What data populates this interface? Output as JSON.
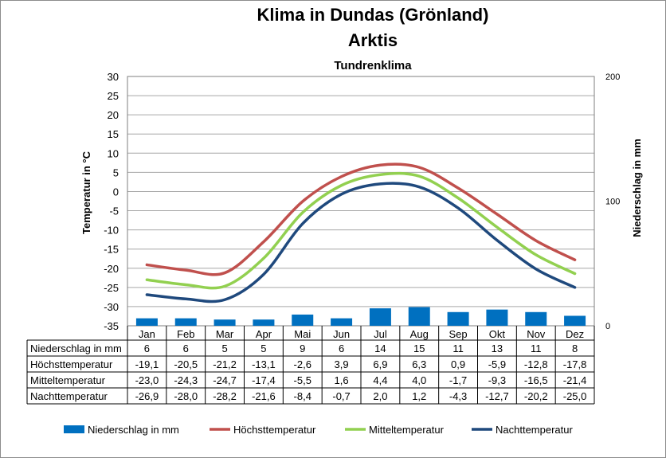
{
  "chart_data": {
    "type": "bar+line",
    "title": "Klima in Dundas (Grönland)",
    "subtitle": "Arktis",
    "subtitle2": "Tundrenklima",
    "ylabel_left": "Temperatur in °C",
    "ylabel_right": "Niederschlag in mm",
    "ylim_left": [
      -35,
      30
    ],
    "ylim_right": [
      0,
      200
    ],
    "yticks_left": [
      "30",
      "25",
      "20",
      "15",
      "10",
      "5",
      "0",
      "-5",
      "-10",
      "-15",
      "-20",
      "-25",
      "-30",
      "-35"
    ],
    "yticks_right": [
      "200",
      "100",
      "0"
    ],
    "grid": true,
    "legend_position": "bottom",
    "categories": [
      "Jan",
      "Feb",
      "Mar",
      "Apr",
      "Mai",
      "Jun",
      "Jul",
      "Aug",
      "Sep",
      "Okt",
      "Nov",
      "Dez"
    ],
    "series": [
      {
        "name": "Niederschlag in mm",
        "type": "bar",
        "axis": "right",
        "color": "#0070c0",
        "values": [
          6,
          6,
          5,
          5,
          9,
          6,
          14,
          15,
          11,
          13,
          11,
          8
        ],
        "labels": [
          "6",
          "6",
          "5",
          "5",
          "9",
          "6",
          "14",
          "15",
          "11",
          "13",
          "11",
          "8"
        ]
      },
      {
        "name": "Höchsttemperatur",
        "type": "line",
        "axis": "left",
        "color": "#c0504d",
        "values": [
          -19.1,
          -20.5,
          -21.2,
          -13.1,
          -2.6,
          3.9,
          6.9,
          6.3,
          0.9,
          -5.9,
          -12.8,
          -17.8
        ],
        "labels": [
          "-19,1",
          "-20,5",
          "-21,2",
          "-13,1",
          "-2,6",
          "3,9",
          "6,9",
          "6,3",
          "0,9",
          "-5,9",
          "-12,8",
          "-17,8"
        ]
      },
      {
        "name": "Mitteltemperatur",
        "type": "line",
        "axis": "left",
        "color": "#92d050",
        "values": [
          -23.0,
          -24.3,
          -24.7,
          -17.4,
          -5.5,
          1.6,
          4.4,
          4.0,
          -1.7,
          -9.3,
          -16.5,
          -21.4
        ],
        "labels": [
          "-23,0",
          "-24,3",
          "-24,7",
          "-17,4",
          "-5,5",
          "1,6",
          "4,4",
          "4,0",
          "-1,7",
          "-9,3",
          "-16,5",
          "-21,4"
        ]
      },
      {
        "name": "Nachttemperatur",
        "type": "line",
        "axis": "left",
        "color": "#1f497d",
        "values": [
          -26.9,
          -28.0,
          -28.2,
          -21.6,
          -8.4,
          -0.7,
          2.0,
          1.2,
          -4.3,
          -12.7,
          -20.2,
          -25.0
        ],
        "labels": [
          "-26,9",
          "-28,0",
          "-28,2",
          "-21,6",
          "-8,4",
          "-0,7",
          "2,0",
          "1,2",
          "-4,3",
          "-12,7",
          "-20,2",
          "-25,0"
        ]
      }
    ]
  }
}
